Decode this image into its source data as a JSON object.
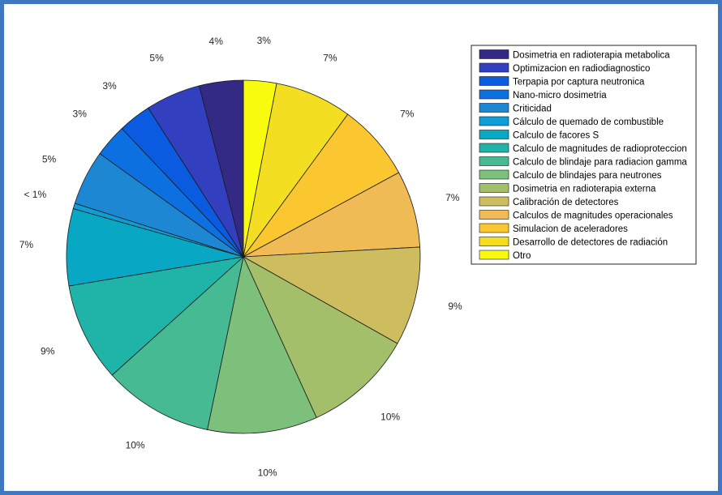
{
  "chart_data": {
    "type": "pie",
    "start": "top",
    "direction": "clockwise",
    "legend_position": "right",
    "slices": [
      {
        "name": "Otro",
        "value": 3,
        "label": "3%",
        "color": "#f9fb0e"
      },
      {
        "name": "Desarrollo de detectores de radiación",
        "value": 7,
        "label": "7%",
        "color": "#f3de22"
      },
      {
        "name": "Simulacion de aceleradores",
        "value": 7,
        "label": "7%",
        "color": "#fbc730"
      },
      {
        "name": "Calculos de magnitudes operacionales",
        "value": 7,
        "label": "7%",
        "color": "#f0ba54"
      },
      {
        "name": "Calibración de detectores",
        "value": 9,
        "label": "9%",
        "color": "#cdbd5e"
      },
      {
        "name": "Dosimetria en radioterapia externa",
        "value": 10,
        "label": "10%",
        "color": "#a4bf6a"
      },
      {
        "name": "Calculo de blindajes para neutrones",
        "value": 10,
        "label": "10%",
        "color": "#7dc07c"
      },
      {
        "name": "Calculo de blindaje para radiacion gamma",
        "value": 10,
        "label": "10%",
        "color": "#46ba93"
      },
      {
        "name": "Calculo de magnitudes de radioproteccion",
        "value": 9,
        "label": "9%",
        "color": "#20b3a8"
      },
      {
        "name": "Calculo de facores S",
        "value": 7,
        "label": "7%",
        "color": "#08a8c4"
      },
      {
        "name": "Cálculo de quemado de combustible",
        "value": 0.5,
        "label": "< 1%",
        "color": "#0e9ed6"
      },
      {
        "name": "Criticidad",
        "value": 5,
        "label": "5%",
        "color": "#1e87d3"
      },
      {
        "name": "Nano-micro dosimetria",
        "value": 3,
        "label": "3%",
        "color": "#0d70e0"
      },
      {
        "name": "Terpapia por captura neutronica",
        "value": 3,
        "label": "3%",
        "color": "#0a5be0"
      },
      {
        "name": "Optimizacion en radiodiagnostico",
        "value": 5,
        "label": "5%",
        "color": "#3240c0"
      },
      {
        "name": "Dosimetria en radioterapia metabolica",
        "value": 4,
        "label": "4%",
        "color": "#332a86"
      }
    ],
    "legend": [
      "Dosimetria en radioterapia metabolica",
      "Optimizacion en radiodiagnostico",
      "Terpapia por captura neutronica",
      "Nano-micro dosimetria",
      "Criticidad",
      "Cálculo de quemado de combustible",
      "Calculo de facores S",
      "Calculo de magnitudes de radioproteccion",
      "Calculo de blindaje para radiacion gamma",
      "Calculo de blindajes para neutrones",
      "Dosimetria en radioterapia externa",
      "Calibración de detectores",
      "Calculos de magnitudes operacionales",
      "Simulacion de aceleradores",
      "Desarrollo de detectores de radiación",
      "Otro"
    ]
  }
}
